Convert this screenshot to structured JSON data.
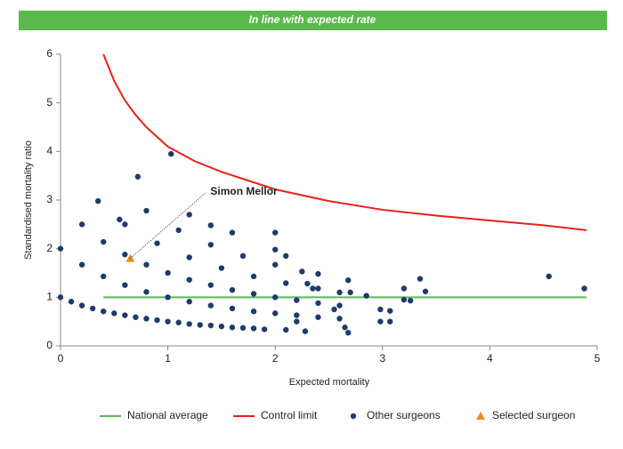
{
  "chart_data": {
    "type": "scatter",
    "title": "In line with expected rate",
    "xlabel": "Expected mortality",
    "ylabel": "Standardised mortality ratio",
    "xlim": [
      0,
      5
    ],
    "ylim": [
      0,
      6
    ],
    "xticks": [
      0,
      1,
      2,
      3,
      4,
      5
    ],
    "yticks": [
      0,
      1,
      2,
      3,
      4,
      5,
      6
    ],
    "grid": false,
    "legend": "bottom",
    "series": [
      {
        "name": "National average",
        "color": "#5cb85c",
        "mode": "line",
        "x": [
          0.4,
          4.9
        ],
        "values": [
          1,
          1
        ]
      },
      {
        "name": "Control limit",
        "color": "#e8201c",
        "mode": "line",
        "x": [
          0.4,
          0.5,
          0.6,
          0.7,
          0.8,
          1,
          1.25,
          1.5,
          2,
          2.5,
          3,
          3.5,
          4,
          4.5,
          4.9
        ],
        "values": [
          6,
          5.45,
          5.05,
          4.75,
          4.5,
          4.1,
          3.8,
          3.58,
          3.22,
          2.98,
          2.8,
          2.68,
          2.58,
          2.48,
          2.38
        ]
      },
      {
        "name": "Other surgeons",
        "color": "#1f3a6b",
        "mode": "marker",
        "marker": "circle",
        "x": [
          0,
          0.1,
          0.2,
          0.3,
          0.4,
          0.5,
          0.6,
          0.7,
          0.8,
          0.9,
          1,
          1.1,
          1.2,
          1.3,
          1.4,
          1.5,
          1.6,
          1.7,
          1.8,
          1.9,
          0,
          0.2,
          0.4,
          0.6,
          0.8,
          1,
          1.2,
          1.4,
          1.6,
          1.8,
          2,
          2.2,
          2.4,
          2.6,
          0.2,
          0.4,
          0.6,
          0.8,
          1,
          1.2,
          1.4,
          1.6,
          1.8,
          2,
          2.2,
          2.4,
          2.6,
          0.6,
          0.9,
          1.2,
          1.5,
          1.8,
          2.1,
          2.4,
          0.8,
          1.1,
          1.4,
          1.7,
          2,
          0.35,
          0.72,
          1.03,
          0.55,
          1.2,
          1.4,
          1.6,
          2,
          2,
          2.1,
          2.25,
          2.4,
          2.3,
          2.35,
          2.6,
          2.68,
          2.7,
          2.85,
          2.55,
          2.65,
          2.68,
          2.98,
          3.07,
          2.98,
          3.07,
          3.2,
          3.2,
          3.26,
          3.35,
          3.4,
          4.55,
          4.88,
          2.28,
          2.1,
          2.2
        ],
        "values": [
          1,
          0.91,
          0.83,
          0.77,
          0.71,
          0.67,
          0.63,
          0.59,
          0.56,
          0.53,
          0.5,
          0.48,
          0.45,
          0.43,
          0.42,
          0.4,
          0.38,
          0.37,
          0.36,
          0.34,
          2,
          1.67,
          1.43,
          1.25,
          1.11,
          1,
          0.91,
          0.83,
          0.77,
          0.71,
          0.67,
          0.63,
          0.59,
          0.56,
          2.5,
          2.14,
          1.88,
          1.67,
          1.5,
          1.36,
          1.25,
          1.15,
          1.07,
          1,
          0.94,
          0.88,
          0.83,
          2.5,
          2.11,
          1.82,
          1.6,
          1.43,
          1.29,
          1.18,
          2.78,
          2.38,
          2.08,
          1.85,
          1.67,
          2.98,
          3.48,
          3.95,
          2.6,
          2.7,
          2.48,
          2.33,
          2.33,
          1.98,
          1.85,
          1.53,
          1.48,
          1.28,
          1.18,
          1.1,
          1.35,
          1.1,
          1.03,
          0.75,
          0.38,
          0.27,
          0.75,
          0.72,
          0.5,
          0.5,
          1.18,
          0.95,
          0.93,
          1.38,
          1.12,
          1.43,
          1.18,
          0.3,
          0.33,
          0.5
        ]
      },
      {
        "name": "Selected surgeon",
        "color": "#f08a1c",
        "mode": "marker",
        "marker": "triangle",
        "x": [
          0.65
        ],
        "values": [
          1.8
        ]
      }
    ],
    "annotations": [
      {
        "text": "Simon Mellor",
        "x": 0.65,
        "y": 1.8
      }
    ]
  }
}
